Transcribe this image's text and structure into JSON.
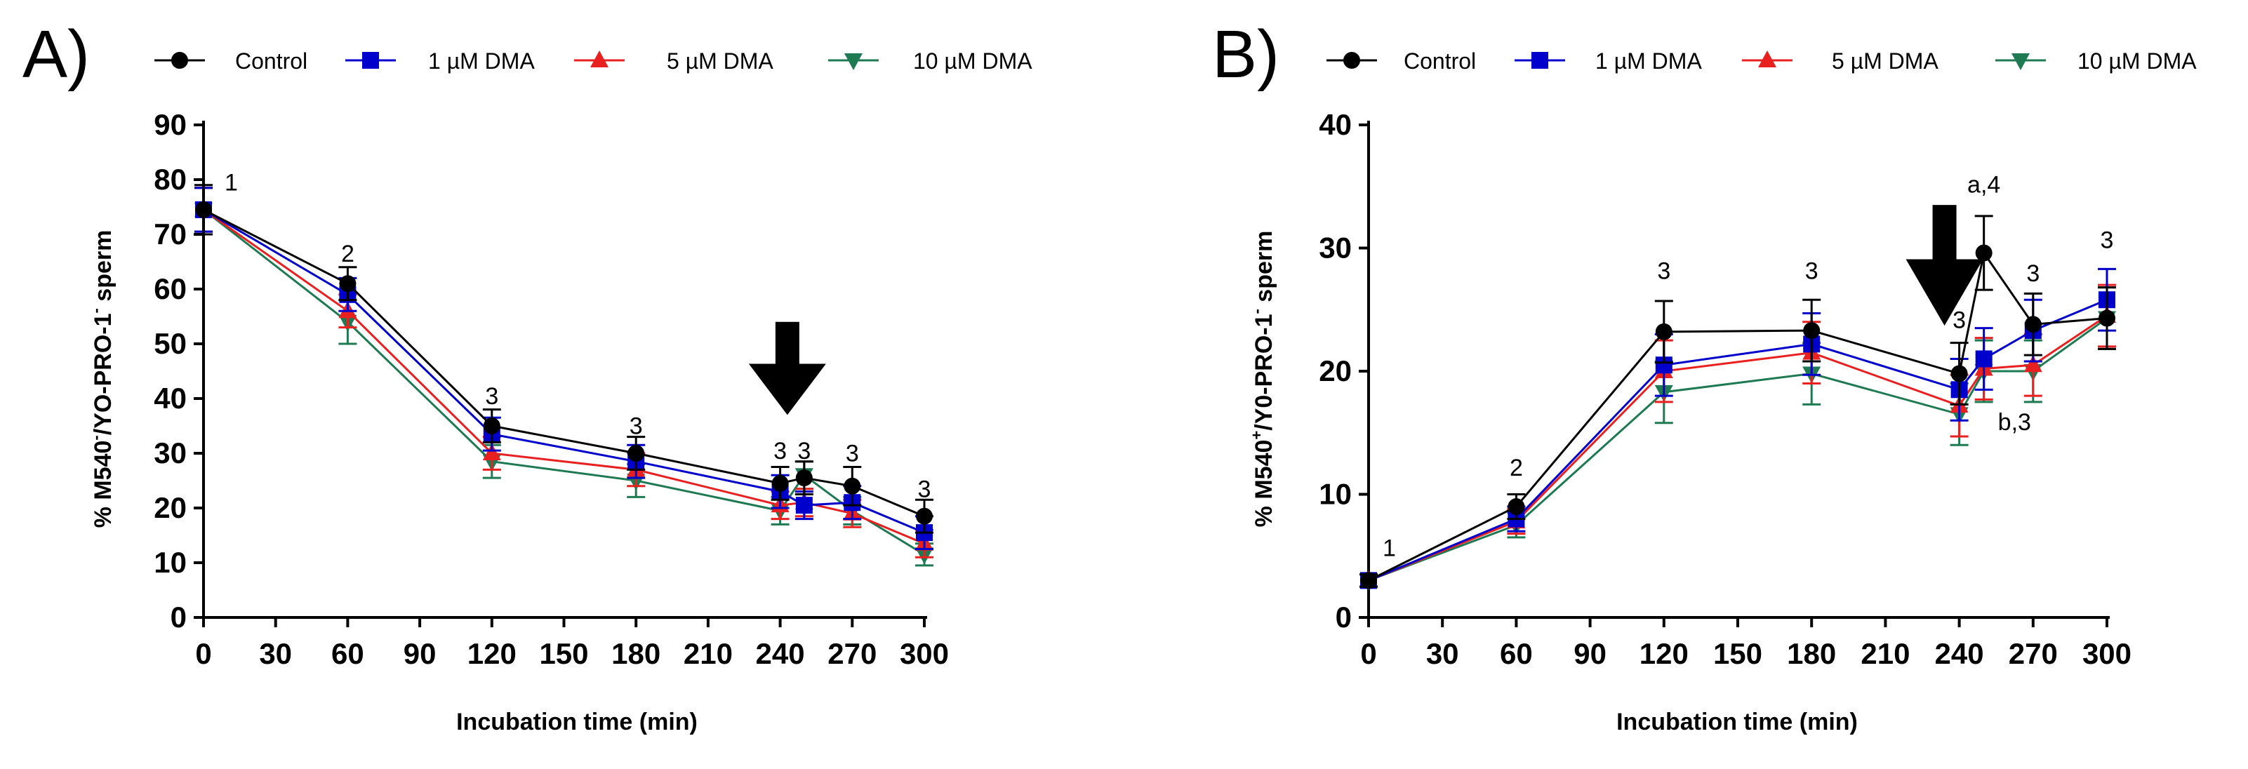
{
  "chart_data": [
    {
      "type": "line",
      "panel_label": "A)",
      "xlabel": "Incubation time (min)",
      "ylabel": "% M540",
      "ylabel_sup1": "-",
      "ylabel_mid": "/YO-PRO-1",
      "ylabel_sup2": "-",
      "ylabel_end": " sperm",
      "x_ticks": [
        0,
        30,
        60,
        90,
        120,
        150,
        180,
        210,
        240,
        270,
        300
      ],
      "y_ticks": [
        0,
        10,
        20,
        30,
        40,
        50,
        60,
        70,
        80,
        90
      ],
      "xlim": [
        0,
        300
      ],
      "ylim": [
        0,
        90
      ],
      "x": [
        0,
        60,
        120,
        180,
        240,
        250,
        270,
        300
      ],
      "series": [
        {
          "name": "Control",
          "color": "#000000",
          "marker": "circle",
          "values": [
            74.5,
            61,
            35,
            30,
            24.5,
            25.5,
            24,
            18.5
          ],
          "errors": [
            4.5,
            3,
            3,
            3,
            3,
            3,
            3.5,
            3
          ]
        },
        {
          "name": "1 µM DMA",
          "color": "#0000cc",
          "marker": "square",
          "values": [
            74.5,
            59,
            33.5,
            28.5,
            23,
            20.5,
            21,
            15.5
          ],
          "errors": [
            4,
            3,
            3,
            3,
            3,
            2.5,
            3,
            3
          ]
        },
        {
          "name": "5 µM DMA",
          "color": "#e8201f",
          "marker": "triangle-up",
          "values": [
            74.5,
            56,
            30,
            27,
            20.5,
            21,
            19,
            13.5
          ],
          "errors": [
            4,
            3,
            3,
            3,
            2.5,
            2.5,
            2.5,
            2.5
          ]
        },
        {
          "name": "10 µM DMA",
          "color": "#1e7a52",
          "marker": "triangle-down",
          "values": [
            74.5,
            54,
            28.5,
            25,
            19.5,
            26,
            19.5,
            11.5
          ],
          "errors": [
            4,
            4,
            3,
            3,
            2.5,
            2.5,
            2.5,
            2
          ]
        }
      ],
      "annotations": [
        {
          "x": 0,
          "y": 78,
          "text": "1",
          "dx": 30
        },
        {
          "x": 60,
          "y": 65,
          "text": "2"
        },
        {
          "x": 120,
          "y": 39,
          "text": "3"
        },
        {
          "x": 180,
          "y": 33.5,
          "text": "3"
        },
        {
          "x": 240,
          "y": 29,
          "text": "3"
        },
        {
          "x": 250,
          "y": 29,
          "text": "3"
        },
        {
          "x": 270,
          "y": 28.5,
          "text": "3"
        },
        {
          "x": 300,
          "y": 22,
          "text": "3"
        }
      ],
      "arrow": {
        "x": 243,
        "y_tip": 37,
        "y_top": 54
      }
    },
    {
      "type": "line",
      "panel_label": "B)",
      "xlabel": "Incubation time (min)",
      "ylabel": "% M540",
      "ylabel_sup1": "+",
      "ylabel_mid": "/Y0-PRO-1",
      "ylabel_sup2": "-",
      "ylabel_end": " sperm",
      "x_ticks": [
        0,
        30,
        60,
        90,
        120,
        150,
        180,
        210,
        240,
        270,
        300
      ],
      "y_ticks": [
        0,
        10,
        20,
        30,
        40
      ],
      "xlim": [
        0,
        300
      ],
      "ylim": [
        0,
        40
      ],
      "x": [
        0,
        60,
        120,
        180,
        240,
        250,
        270,
        300
      ],
      "series": [
        {
          "name": "Control",
          "color": "#000000",
          "marker": "circle",
          "values": [
            3,
            9,
            23.2,
            23.3,
            19.8,
            29.6,
            23.8,
            24.3
          ],
          "errors": [
            0.5,
            1,
            2.5,
            2.5,
            2.5,
            3,
            2.5,
            2.5
          ]
        },
        {
          "name": "1 µM DMA",
          "color": "#0000cc",
          "marker": "square",
          "values": [
            3,
            8,
            20.5,
            22.2,
            18.5,
            21,
            23.3,
            25.8
          ],
          "errors": [
            0.5,
            1,
            2.5,
            2.5,
            2.5,
            2.5,
            2.5,
            2.5
          ]
        },
        {
          "name": "5 µM DMA",
          "color": "#e8201f",
          "marker": "triangle-up",
          "values": [
            3,
            7.8,
            20,
            21.5,
            17.2,
            20.2,
            20.5,
            24.5
          ],
          "errors": [
            0.5,
            1,
            2.5,
            2.5,
            2.5,
            2.5,
            2.5,
            2.5
          ]
        },
        {
          "name": "10 µM DMA",
          "color": "#1e7a52",
          "marker": "triangle-down",
          "values": [
            3,
            7.5,
            18.3,
            19.8,
            16.5,
            20,
            20,
            24.3
          ],
          "errors": [
            0.5,
            1,
            2.5,
            2.5,
            2.5,
            2.5,
            2.5,
            2.5
          ]
        }
      ],
      "annotations": [
        {
          "x": 0,
          "y": 5,
          "text": "1",
          "dx": 20
        },
        {
          "x": 60,
          "y": 11.5,
          "text": "2"
        },
        {
          "x": 120,
          "y": 27.5,
          "text": "3"
        },
        {
          "x": 180,
          "y": 27.5,
          "text": "3"
        },
        {
          "x": 240,
          "y": 23.5,
          "text": "3"
        },
        {
          "x": 250,
          "y": 34.5,
          "text": "a,4"
        },
        {
          "x": 270,
          "y": 27.3,
          "text": "3"
        },
        {
          "x": 300,
          "y": 30,
          "text": "3"
        },
        {
          "x": 250,
          "y": 15.2,
          "text": "b,3",
          "dx": 20
        }
      ],
      "arrow": {
        "x": 234,
        "y_tip": 23.7,
        "y_top": 33.5
      }
    }
  ]
}
